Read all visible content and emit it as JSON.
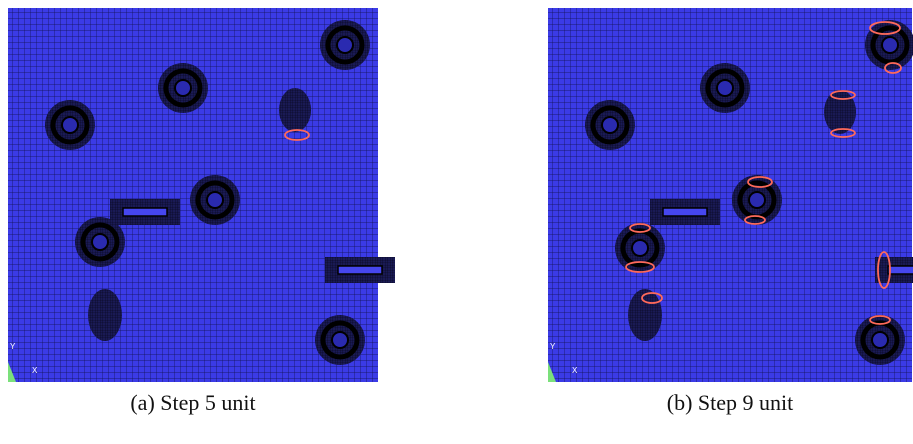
{
  "figure": {
    "panels": [
      {
        "caption": "(a) Step 5 unit",
        "axis_y": "Y",
        "axis_x": "X"
      },
      {
        "caption": "(b) Step 9 unit",
        "axis_y": "Y",
        "axis_x": "X"
      }
    ]
  }
}
